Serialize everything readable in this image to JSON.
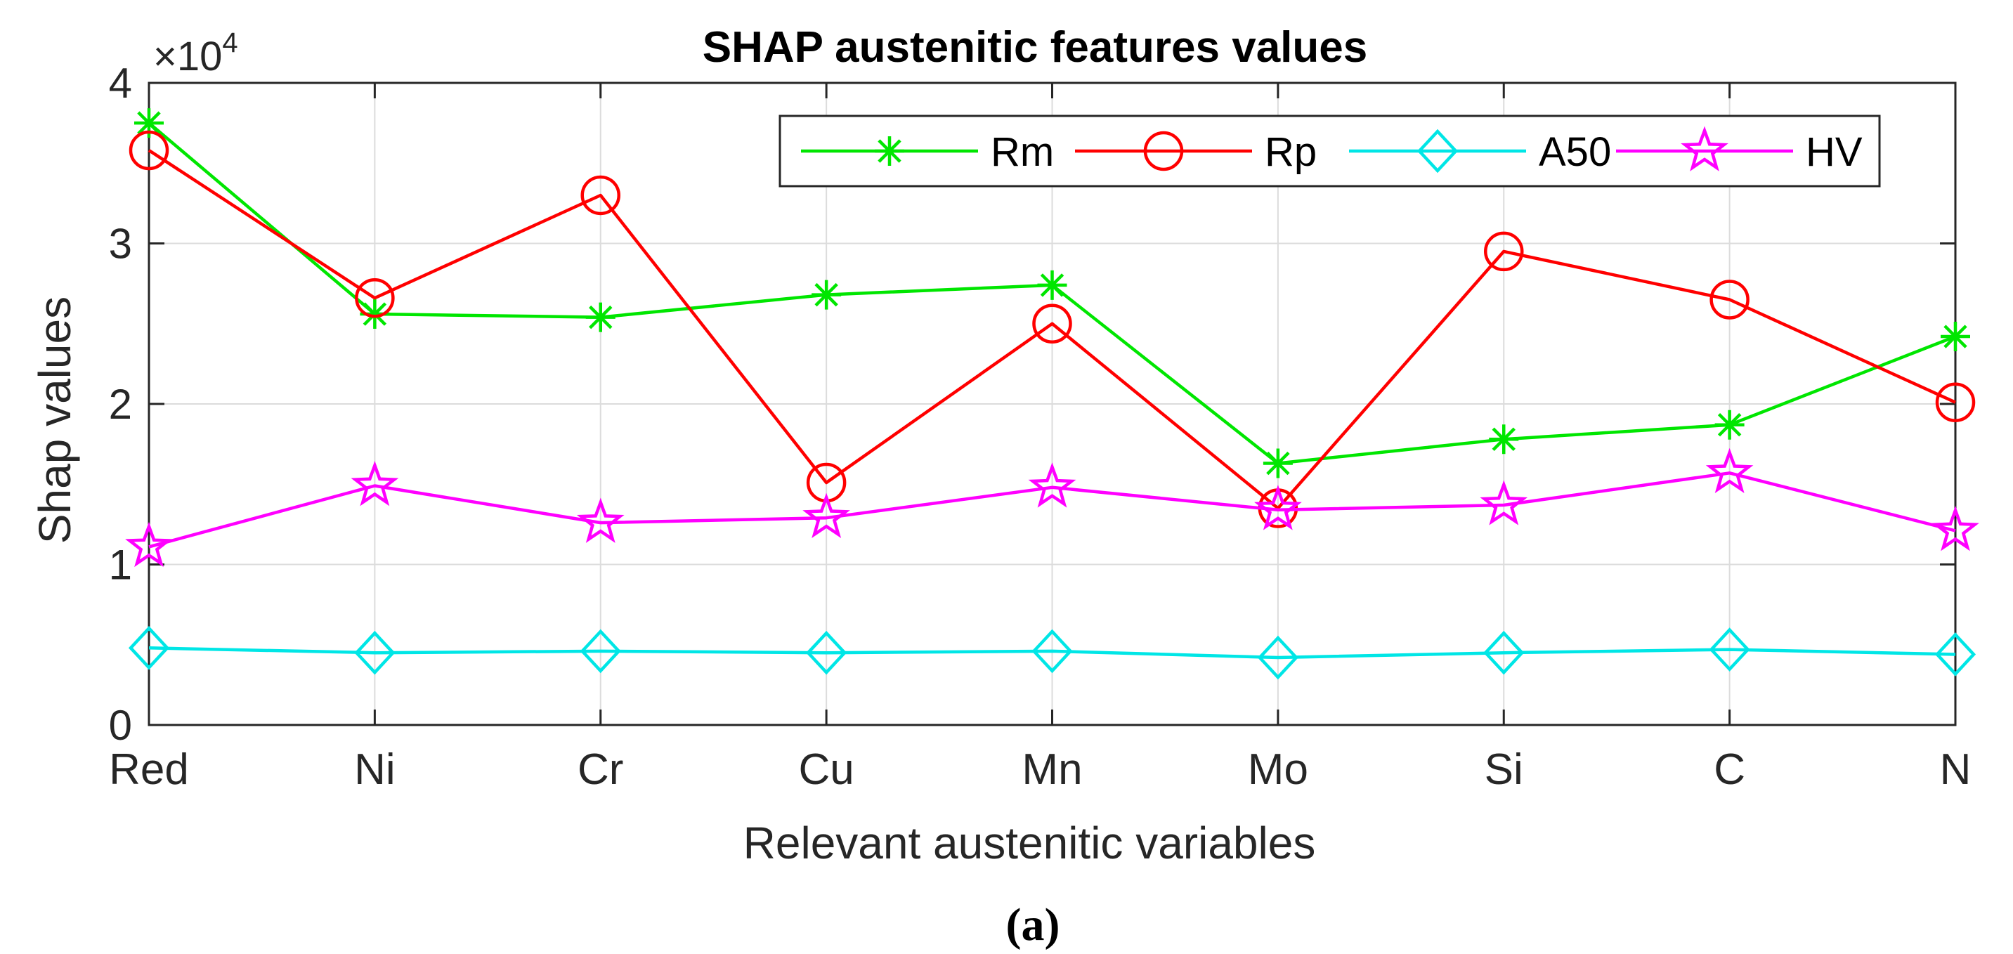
{
  "chart_data": {
    "type": "line",
    "title": "SHAP austenitic features values",
    "xlabel": "Relevant austenitic variables",
    "ylabel": "Shap values",
    "y_exponent_label": "×10",
    "y_exponent_power": "4",
    "categories": [
      "Red",
      "Ni",
      "Cr",
      "Cu",
      "Mn",
      "Mo",
      "Si",
      "C",
      "N"
    ],
    "ylim": [
      0,
      4
    ],
    "yticks": [
      0,
      1,
      2,
      3,
      4
    ],
    "ytick_labels": [
      "0",
      "1",
      "2",
      "3",
      "4"
    ],
    "grid": true,
    "legend_position": "top-right",
    "series": [
      {
        "name": "Rm",
        "color": "#00e600",
        "marker": "asterisk",
        "values": [
          3.75,
          2.56,
          2.54,
          2.68,
          2.74,
          1.63,
          1.78,
          1.87,
          2.42
        ]
      },
      {
        "name": "Rp",
        "color": "#ff0000",
        "marker": "circle",
        "values": [
          3.58,
          2.66,
          3.3,
          1.51,
          2.5,
          1.35,
          2.95,
          2.65,
          2.01
        ]
      },
      {
        "name": "A50",
        "color": "#00e6e6",
        "marker": "diamond",
        "values": [
          0.48,
          0.45,
          0.46,
          0.45,
          0.46,
          0.42,
          0.45,
          0.47,
          0.44
        ]
      },
      {
        "name": "HV",
        "color": "#ff00ff",
        "marker": "star",
        "values": [
          1.11,
          1.49,
          1.26,
          1.29,
          1.48,
          1.34,
          1.37,
          1.57,
          1.21
        ]
      }
    ]
  },
  "caption": "(a)"
}
